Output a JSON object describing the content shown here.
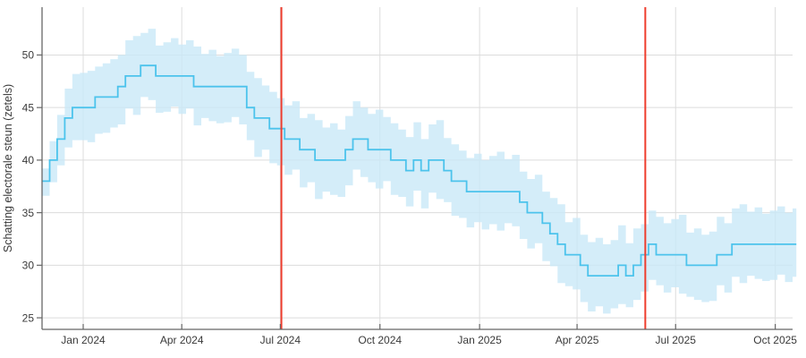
{
  "chart_data": {
    "type": "line",
    "title": "",
    "xlabel": "",
    "ylabel": "Schatting electorale steun (zetels)",
    "grid": true,
    "legend": false,
    "ylim": [
      23.9,
      54.55
    ],
    "x_domain": [
      "2023-11-24",
      "2025-10-17"
    ],
    "yticks": [
      25,
      30,
      35,
      40,
      45,
      50
    ],
    "xticks": [
      {
        "label": "Jan 2024",
        "date": "2024-01-01"
      },
      {
        "label": "Apr 2024",
        "date": "2024-04-01"
      },
      {
        "label": "Jul 2024",
        "date": "2024-07-01"
      },
      {
        "label": "Oct 2024",
        "date": "2024-10-01"
      },
      {
        "label": "Jan 2025",
        "date": "2025-01-01"
      },
      {
        "label": "Apr 2025",
        "date": "2025-04-01"
      },
      {
        "label": "Jul 2025",
        "date": "2025-07-01"
      },
      {
        "label": "Oct 2025",
        "date": "2025-10-01"
      }
    ],
    "event_lines": [
      {
        "date": "2024-07-02"
      },
      {
        "date": "2025-06-03"
      }
    ],
    "series": [
      {
        "name": "Schatting electorale steun (zetels)",
        "start_date": "2023-11-24",
        "interval_days": 7,
        "values": [
          38,
          40,
          42,
          44,
          45,
          45,
          45,
          46,
          46,
          46,
          47,
          48,
          48,
          49,
          49,
          48,
          48,
          48,
          48,
          48,
          47,
          47,
          47,
          47,
          47,
          47,
          47,
          45,
          44,
          44,
          43,
          43,
          42,
          42,
          41,
          41,
          40,
          40,
          40,
          40,
          41,
          42,
          42,
          41,
          41,
          41,
          40,
          40,
          39,
          40,
          39,
          40,
          40,
          39,
          38,
          38,
          37,
          37,
          37,
          37,
          37,
          37,
          37,
          36,
          35,
          35,
          34,
          33,
          32,
          31,
          31,
          30,
          29,
          29,
          29,
          29,
          30,
          29,
          30,
          31,
          32,
          31,
          31,
          31,
          31,
          30,
          30,
          30,
          30,
          31,
          31,
          32,
          32,
          32,
          32,
          32,
          32,
          32,
          32,
          32
        ],
        "upper": [
          39.2,
          41.8,
          44.3,
          46.8,
          48.2,
          48.3,
          48.5,
          48.9,
          49.2,
          49.6,
          50.0,
          51.4,
          51.8,
          52.1,
          52.5,
          50.9,
          51.2,
          51.6,
          51.0,
          51.4,
          50.8,
          50.1,
          50.5,
          49.9,
          50.2,
          50.6,
          50.0,
          48.4,
          47.8,
          47.1,
          46.5,
          45.9,
          45.2,
          45.6,
          44.0,
          44.4,
          43.8,
          43.1,
          43.5,
          42.9,
          44.2,
          45.6,
          45.0,
          44.4,
          44.8,
          44.1,
          43.5,
          42.9,
          42.2,
          43.6,
          42.0,
          43.4,
          43.8,
          42.1,
          41.5,
          40.9,
          40.2,
          40.6,
          40.0,
          40.4,
          40.8,
          40.1,
          40.5,
          38.9,
          38.2,
          38.6,
          37.0,
          36.4,
          35.8,
          34.1,
          34.5,
          32.9,
          32.2,
          32.6,
          32.0,
          32.4,
          33.8,
          32.1,
          33.5,
          33.9,
          35.2,
          34.6,
          34.0,
          34.4,
          34.8,
          33.1,
          33.5,
          32.9,
          33.2,
          34.6,
          34.0,
          35.4,
          35.8,
          35.1,
          35.5,
          34.9,
          35.2,
          35.6,
          35.0,
          35.4
        ],
        "lower": [
          36.6,
          37.9,
          39.5,
          41.2,
          41.9,
          41.9,
          41.7,
          42.5,
          42.6,
          43.1,
          43.4,
          44.9,
          44.3,
          46.0,
          45.7,
          44.5,
          44.6,
          45.1,
          44.4,
          44.9,
          43.3,
          44.0,
          43.7,
          43.5,
          43.6,
          44.1,
          43.4,
          41.9,
          40.3,
          41.0,
          39.7,
          39.5,
          38.6,
          39.1,
          37.4,
          37.9,
          36.3,
          37.0,
          36.7,
          36.5,
          37.6,
          39.1,
          38.4,
          37.9,
          37.3,
          38.0,
          36.7,
          36.5,
          35.6,
          37.1,
          35.4,
          36.9,
          36.3,
          36.0,
          34.7,
          34.5,
          33.6,
          34.1,
          33.4,
          33.9,
          33.3,
          34.0,
          33.7,
          32.5,
          31.6,
          32.1,
          30.4,
          29.9,
          28.3,
          28.0,
          27.7,
          26.5,
          25.6,
          26.1,
          25.4,
          25.9,
          26.3,
          26.0,
          26.7,
          27.5,
          28.6,
          28.1,
          27.4,
          27.9,
          27.3,
          27.0,
          26.7,
          26.5,
          26.6,
          28.1,
          27.4,
          28.9,
          28.3,
          29.0,
          28.7,
          28.5,
          28.6,
          29.1,
          28.4,
          28.9
        ]
      }
    ],
    "colors": {
      "line": "#4cc3ec",
      "band": "#c9e9f8",
      "event_line": "#ee3d2e",
      "grid": "#dcdcdc",
      "axis": "#666666",
      "text": "#3a3a3a"
    }
  }
}
